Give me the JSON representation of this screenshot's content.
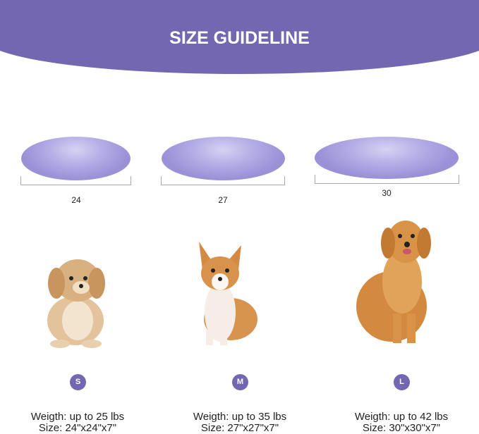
{
  "header": {
    "title": "SIZE GUIDELINE",
    "color": "#7467b2"
  },
  "sizes": [
    {
      "badge": "S",
      "dimension_label": "24",
      "weight": "Weigth: up to 25 lbs",
      "size": "Size: 24\"x24\"x7\""
    },
    {
      "badge": "M",
      "dimension_label": "27",
      "weight": "Weigth: up to 35 lbs",
      "size": "Size: 27\"x27\"x7\""
    },
    {
      "badge": "L",
      "dimension_label": "30",
      "weight": "Weigth: up to 42 lbs",
      "size": "Size: 30\"x30\"x7\""
    }
  ]
}
